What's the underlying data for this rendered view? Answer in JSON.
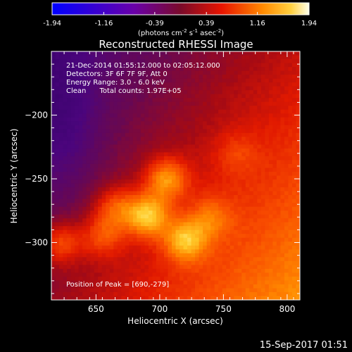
{
  "chart_data": {
    "type": "heatmap",
    "title": "Reconstructed RHESSI Image",
    "colorbar": {
      "ticks": [
        "-1.94",
        "-1.16",
        "-0.39",
        "0.39",
        "1.16",
        "1.94"
      ],
      "range": [
        -1.94,
        1.94
      ],
      "unit_parts": [
        "(photons cm",
        "-2",
        " s",
        "-1",
        " asec",
        "-2",
        ")"
      ]
    },
    "xlabel": "Heliocentric X (arcsec)",
    "ylabel": "Heliocentric Y (arcsec)",
    "xlim": [
      615,
      810
    ],
    "ylim": [
      -345,
      -150
    ],
    "xticks": [
      650,
      700,
      750,
      800
    ],
    "yticks": [
      -200,
      -250,
      -300
    ],
    "colormap": "hot",
    "annotations": [
      "21-Dec-2014 01:55:12.000 to 02:05:12.000",
      "Detectors: 3F 6F 7F 9F, Att 0",
      "Energy Range: 3.0 - 6.0 keV",
      "Clean      Total counts: 1.97E+05"
    ],
    "peak_label": "Position of Peak = [690,-279]",
    "peak": [
      690,
      -279
    ],
    "sources": [
      {
        "x": 690,
        "y": -279,
        "flux": 1.94
      },
      {
        "x": 705,
        "y": -250,
        "flux": 1.6
      },
      {
        "x": 720,
        "y": -298,
        "flux": 1.55
      },
      {
        "x": 622,
        "y": -300,
        "flux": 1.35
      },
      {
        "x": 655,
        "y": -295,
        "flux": 1.1
      },
      {
        "x": 665,
        "y": -272,
        "flux": 1.2
      },
      {
        "x": 740,
        "y": -280,
        "flux": 0.8
      },
      {
        "x": 760,
        "y": -230,
        "flux": 0.5
      }
    ]
  },
  "footer": {
    "timestamp": "15-Sep-2017 01:51"
  }
}
